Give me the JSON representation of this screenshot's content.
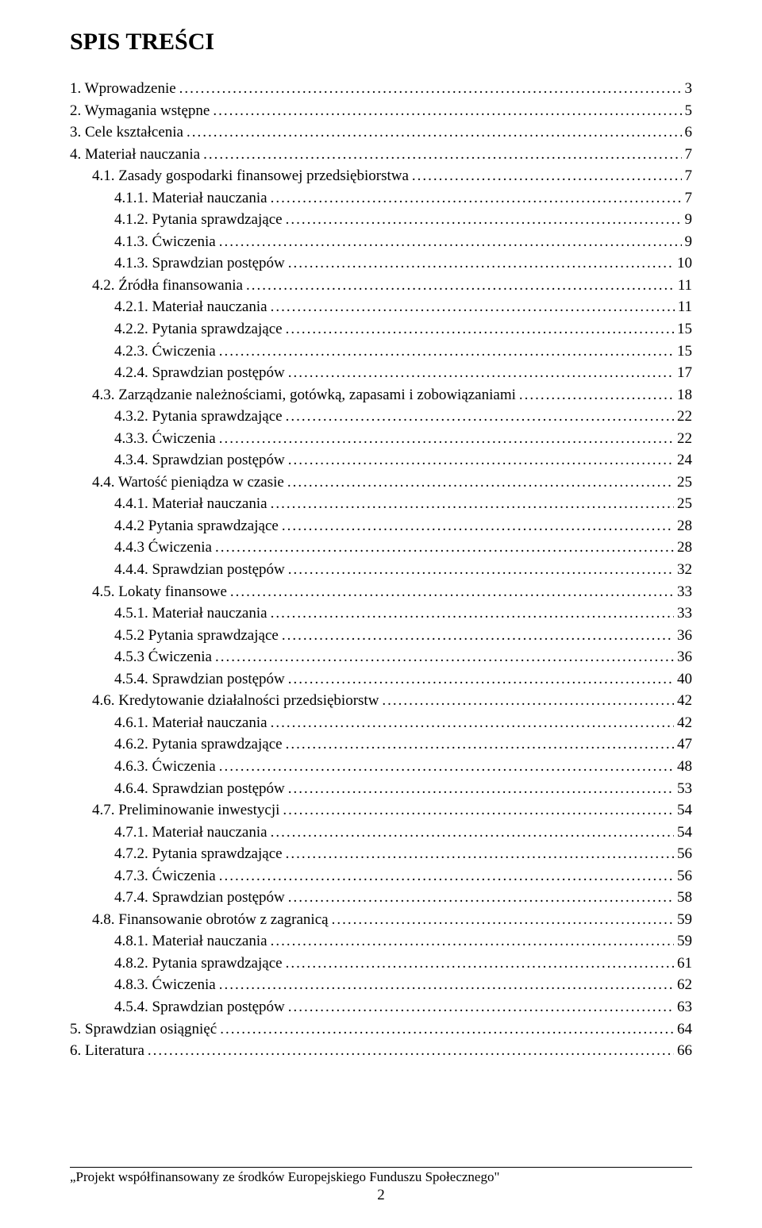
{
  "title": "SPIS TREŚCI",
  "toc": [
    {
      "label": "1. Wprowadzenie",
      "page": "3",
      "indent": 0
    },
    {
      "label": "2. Wymagania wstępne",
      "page": "5",
      "indent": 0
    },
    {
      "label": "3. Cele kształcenia",
      "page": "6",
      "indent": 0
    },
    {
      "label": "4. Materiał nauczania",
      "page": "7",
      "indent": 0
    },
    {
      "label": "4.1. Zasady gospodarki finansowej przedsiębiorstwa",
      "page": "7",
      "indent": 1
    },
    {
      "label": "4.1.1. Materiał nauczania",
      "page": "7",
      "indent": 2
    },
    {
      "label": "4.1.2. Pytania sprawdzające",
      "page": "9",
      "indent": 2
    },
    {
      "label": "4.1.3. Ćwiczenia",
      "page": "9",
      "indent": 2
    },
    {
      "label": "4.1.3. Sprawdzian postępów",
      "page": "10",
      "indent": 2
    },
    {
      "label": "4.2. Źródła finansowania",
      "page": "11",
      "indent": 1
    },
    {
      "label": "4.2.1. Materiał nauczania",
      "page": "11",
      "indent": 2
    },
    {
      "label": "4.2.2. Pytania sprawdzające",
      "page": "15",
      "indent": 2
    },
    {
      "label": "4.2.3. Ćwiczenia",
      "page": "15",
      "indent": 2
    },
    {
      "label": "4.2.4. Sprawdzian postępów",
      "page": "17",
      "indent": 2
    },
    {
      "label": "4.3. Zarządzanie należnościami, gotówką, zapasami i zobowiązaniami",
      "page": "18",
      "indent": 1
    },
    {
      "label": "4.3.2. Pytania sprawdzające",
      "page": "22",
      "indent": 2
    },
    {
      "label": "4.3.3. Ćwiczenia",
      "page": "22",
      "indent": 2
    },
    {
      "label": "4.3.4. Sprawdzian postępów",
      "page": "24",
      "indent": 2
    },
    {
      "label": "4.4. Wartość pieniądza w czasie",
      "page": "25",
      "indent": 1
    },
    {
      "label": "4.4.1. Materiał nauczania",
      "page": "25",
      "indent": 2
    },
    {
      "label": "4.4.2 Pytania sprawdzające",
      "page": "28",
      "indent": 2
    },
    {
      "label": "4.4.3 Ćwiczenia",
      "page": "28",
      "indent": 2
    },
    {
      "label": "4.4.4. Sprawdzian postępów",
      "page": "32",
      "indent": 2
    },
    {
      "label": "4.5. Lokaty finansowe",
      "page": "33",
      "indent": 1
    },
    {
      "label": "4.5.1. Materiał nauczania",
      "page": "33",
      "indent": 2
    },
    {
      "label": "4.5.2 Pytania sprawdzające",
      "page": "36",
      "indent": 2
    },
    {
      "label": "4.5.3 Ćwiczenia",
      "page": "36",
      "indent": 2
    },
    {
      "label": "4.5.4. Sprawdzian postępów",
      "page": "40",
      "indent": 2
    },
    {
      "label": "4.6. Kredytowanie działalności przedsiębiorstw",
      "page": "42",
      "indent": 1
    },
    {
      "label": "4.6.1. Materiał nauczania",
      "page": "42",
      "indent": 2
    },
    {
      "label": "4.6.2. Pytania sprawdzające",
      "page": "47",
      "indent": 2
    },
    {
      "label": "4.6.3. Ćwiczenia",
      "page": "48",
      "indent": 2
    },
    {
      "label": "4.6.4. Sprawdzian postępów",
      "page": "53",
      "indent": 2
    },
    {
      "label": "4.7. Preliminowanie inwestycji",
      "page": "54",
      "indent": 1
    },
    {
      "label": "4.7.1. Materiał nauczania",
      "page": "54",
      "indent": 2
    },
    {
      "label": "4.7.2. Pytania sprawdzające",
      "page": "56",
      "indent": 2
    },
    {
      "label": "4.7.3. Ćwiczenia",
      "page": "56",
      "indent": 2
    },
    {
      "label": "4.7.4. Sprawdzian postępów",
      "page": "58",
      "indent": 2
    },
    {
      "label": "4.8. Finansowanie obrotów z zagranicą",
      "page": "59",
      "indent": 1
    },
    {
      "label": "4.8.1. Materiał nauczania",
      "page": "59",
      "indent": 2
    },
    {
      "label": "4.8.2. Pytania sprawdzające",
      "page": "61",
      "indent": 2
    },
    {
      "label": "4.8.3. Ćwiczenia",
      "page": "62",
      "indent": 2
    },
    {
      "label": "4.5.4. Sprawdzian postępów",
      "page": "63",
      "indent": 2
    },
    {
      "label": "5. Sprawdzian osiągnięć",
      "page": "64",
      "indent": 0
    },
    {
      "label": "6. Literatura",
      "page": "66",
      "indent": 0
    }
  ],
  "footer": {
    "text": "„Projekt współfinansowany ze środków Europejskiego Funduszu Społecznego\"",
    "page_number": "2"
  }
}
